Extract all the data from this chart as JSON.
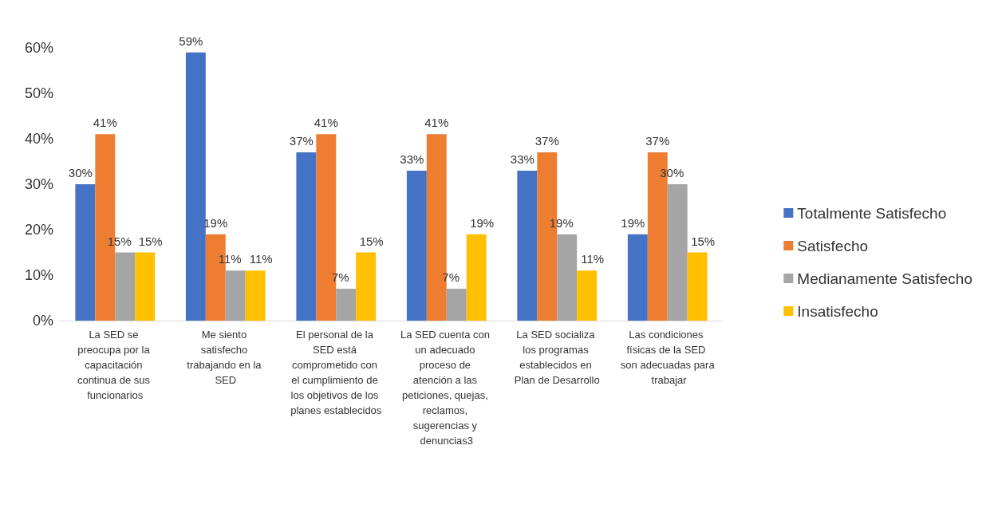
{
  "chart_data": {
    "type": "bar",
    "categories": [
      "La SED se preocupa por la capacitación continua de sus funcionarios",
      "Me siento satisfecho trabajando en la SED",
      "El personal de la SED está comprometido con el cumplimiento de los objetivos de los planes establecidos",
      "La SED cuenta con un adecuado proceso de atención a las peticiones, quejas, reclamos, sugerencias y denuncias3",
      "La SED socializa los programas establecidos en Plan de Desarrollo",
      "Las condiciones físicas de la SED son adecuadas para trabajar"
    ],
    "series": [
      {
        "name": "Totalmente Satisfecho",
        "color": "#4472c4",
        "values": [
          30,
          59,
          37,
          33,
          33,
          19
        ],
        "value_labels": [
          "30%",
          "59%",
          "37%",
          "33%",
          "33%",
          "19%"
        ]
      },
      {
        "name": "Satisfecho",
        "color": "#ed7d31",
        "values": [
          41,
          19,
          41,
          41,
          37,
          37
        ],
        "value_labels": [
          "41%",
          "19%",
          "41%",
          "41%",
          "37%",
          "37%"
        ]
      },
      {
        "name": "Medianamente Satisfecho",
        "color": "#a5a5a5",
        "values": [
          15,
          11,
          7,
          7,
          19,
          30
        ],
        "value_labels": [
          "15%",
          "11%",
          "7%",
          "7%",
          "19%",
          "30%"
        ]
      },
      {
        "name": "Insatisfecho",
        "color": "#ffc000",
        "values": [
          15,
          11,
          15,
          19,
          11,
          15
        ],
        "value_labels": [
          "15%",
          "11%",
          "15%",
          "19%",
          "11%",
          "15%"
        ]
      }
    ],
    "ylim": [
      0,
      60
    ],
    "yticks": [
      {
        "value": 0,
        "label": "0%"
      },
      {
        "value": 10,
        "label": "10%"
      },
      {
        "value": 20,
        "label": "20%"
      },
      {
        "value": 30,
        "label": "30%"
      },
      {
        "value": 40,
        "label": "40%"
      },
      {
        "value": 50,
        "label": "50%"
      },
      {
        "value": 60,
        "label": "60%"
      }
    ],
    "grid": false,
    "legend": "right"
  }
}
